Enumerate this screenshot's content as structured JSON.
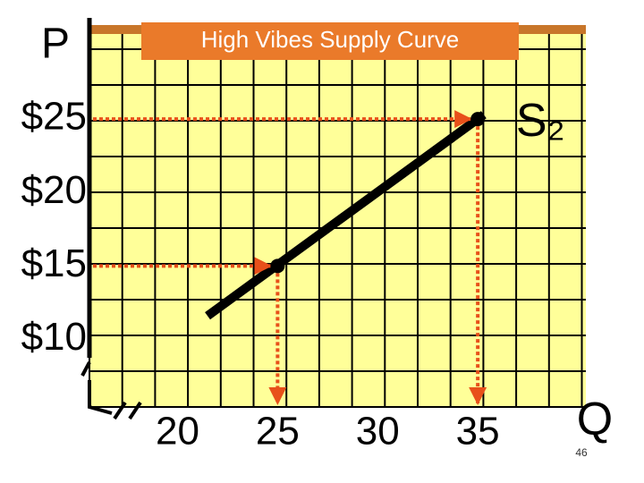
{
  "chart_data": {
    "type": "line",
    "title": "High Vibes Supply Curve",
    "y_label": "P",
    "x_label": "Q",
    "xlim": [
      15.6,
      40.4
    ],
    "ylim": [
      5.4,
      31.4
    ],
    "xticks": [
      20,
      25,
      30,
      35
    ],
    "yticks": [
      {
        "value": 10,
        "label": "$10"
      },
      {
        "value": 15,
        "label": "$15"
      },
      {
        "value": 20,
        "label": "$20"
      },
      {
        "value": 25,
        "label": "$25"
      }
    ],
    "series": [
      {
        "name": "S₂",
        "color": "#000000",
        "x": [
          21.5,
          35.3
        ],
        "values": [
          11.6,
          25.3
        ]
      }
    ],
    "points": {
      "color": "#e8501a",
      "x": [
        25,
        35
      ],
      "values": [
        15,
        25
      ]
    }
  },
  "slide_number": "46"
}
